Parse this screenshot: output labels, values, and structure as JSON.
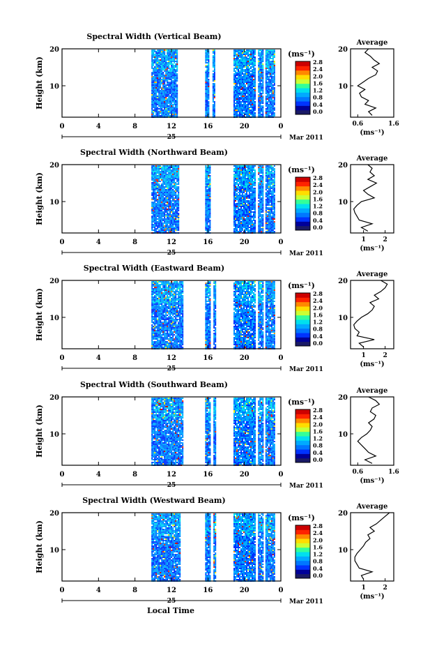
{
  "figure": {
    "xlabel": "Local Time",
    "date_day": "25",
    "date_label": "Mar 2011",
    "avg_title": "Average",
    "cbar_unit": "(ms⁻¹)",
    "avg_xlabel": "(ms⁻¹)",
    "ylabel": "Height (km)"
  },
  "colors": {
    "scale": [
      "#1a1a66",
      "#000099",
      "#0033ff",
      "#0077ff",
      "#00aaff",
      "#00e0ee",
      "#33ff99",
      "#ccff33",
      "#ffdd00",
      "#ff8800",
      "#ff2200",
      "#cc0000"
    ]
  },
  "chart_data": [
    {
      "type": "heatmap",
      "title": "Spectral Width (Vertical Beam)",
      "xlim": [
        0,
        24
      ],
      "ylim": [
        1.5,
        20
      ],
      "xticks": [
        "0",
        "4",
        "8",
        "12",
        "16",
        "20",
        "0"
      ],
      "yticks": [
        "10",
        "20"
      ],
      "cbar_ticks": [
        "0.0",
        "0.4",
        "0.8",
        "1.2",
        "1.6",
        "2.0",
        "2.4",
        "2.8"
      ],
      "cbar_range": [
        0,
        3.0
      ],
      "data_coverage_hours": [
        [
          9.8,
          12.7
        ],
        [
          15.7,
          16.1
        ],
        [
          16.5,
          16.7
        ],
        [
          18.8,
          21.1
        ],
        [
          21.5,
          22.0
        ],
        [
          22.3,
          23.3
        ]
      ],
      "average_profile": {
        "xlim": [
          0.4,
          1.6
        ],
        "xticks": [
          "0.6",
          "1.6"
        ],
        "yticks": [
          "10",
          "20"
        ],
        "height_km": [
          2,
          3,
          4,
          5,
          6,
          7,
          8,
          9,
          10,
          11,
          12,
          13,
          14,
          15,
          16,
          17,
          18,
          19,
          20
        ],
        "width_ms": [
          1.0,
          0.9,
          1.1,
          0.8,
          0.9,
          0.7,
          0.65,
          0.8,
          0.6,
          0.75,
          0.9,
          1.1,
          1.15,
          1.0,
          1.2,
          1.05,
          0.95,
          0.8,
          0.9
        ]
      }
    },
    {
      "type": "heatmap",
      "title": "Spectral Width (Northward Beam)",
      "xlim": [
        0,
        24
      ],
      "ylim": [
        1.5,
        20
      ],
      "xticks": [
        "0",
        "4",
        "8",
        "12",
        "16",
        "20",
        "0"
      ],
      "yticks": [
        "10",
        "20"
      ],
      "cbar_ticks": [
        "0.0",
        "0.4",
        "0.8",
        "1.2",
        "1.6",
        "2.0",
        "2.4",
        "2.8"
      ],
      "cbar_range": [
        0,
        3.0
      ],
      "data_coverage_hours": [
        [
          9.8,
          12.8
        ],
        [
          15.7,
          16.2
        ],
        [
          18.8,
          21.2
        ],
        [
          21.5,
          22.0
        ],
        [
          22.3,
          23.3
        ]
      ],
      "average_profile": {
        "xlim": [
          0.4,
          2.4
        ],
        "xticks": [
          "1",
          "2"
        ],
        "yticks": [
          "10",
          "20"
        ],
        "height_km": [
          2,
          3,
          4,
          5,
          6,
          7,
          8,
          9,
          10,
          11,
          12,
          13,
          14,
          15,
          16,
          17,
          18,
          19,
          20
        ],
        "width_ms": [
          1.2,
          0.9,
          1.4,
          0.8,
          0.7,
          0.6,
          0.55,
          0.7,
          0.9,
          1.5,
          1.2,
          1.0,
          1.3,
          1.6,
          1.2,
          1.5,
          1.3,
          1.4,
          1.2
        ]
      }
    },
    {
      "type": "heatmap",
      "title": "Spectral Width (Eastward Beam)",
      "xlim": [
        0,
        24
      ],
      "ylim": [
        1.5,
        20
      ],
      "xticks": [
        "0",
        "4",
        "8",
        "12",
        "16",
        "20",
        "0"
      ],
      "yticks": [
        "10",
        "20"
      ],
      "cbar_ticks": [
        "0.0",
        "0.4",
        "0.8",
        "1.2",
        "1.6",
        "2.0",
        "2.4",
        "2.8"
      ],
      "cbar_range": [
        0,
        3.0
      ],
      "data_coverage_hours": [
        [
          9.8,
          13.3
        ],
        [
          15.7,
          16.2
        ],
        [
          16.6,
          16.8
        ],
        [
          18.8,
          21.2
        ],
        [
          21.5,
          22.0
        ],
        [
          22.3,
          23.3
        ]
      ],
      "average_profile": {
        "xlim": [
          0.4,
          2.4
        ],
        "xticks": [
          "1",
          "2"
        ],
        "yticks": [
          "10",
          "20"
        ],
        "height_km": [
          2,
          3,
          4,
          5,
          6,
          7,
          8,
          9,
          10,
          11,
          12,
          13,
          14,
          15,
          16,
          17,
          18,
          19,
          20
        ],
        "width_ms": [
          1.0,
          0.8,
          1.5,
          0.7,
          0.8,
          0.6,
          0.55,
          0.7,
          0.9,
          1.2,
          1.4,
          1.5,
          1.3,
          1.7,
          1.5,
          1.8,
          2.0,
          2.1,
          1.8
        ]
      }
    },
    {
      "type": "heatmap",
      "title": "Spectral Width (Southward Beam)",
      "xlim": [
        0,
        24
      ],
      "ylim": [
        1.5,
        20
      ],
      "xticks": [
        "0",
        "4",
        "8",
        "12",
        "16",
        "20",
        "0"
      ],
      "yticks": [
        "10",
        "20"
      ],
      "cbar_ticks": [
        "0.0",
        "0.4",
        "0.8",
        "1.2",
        "1.6",
        "2.0",
        "2.4",
        "2.8"
      ],
      "cbar_range": [
        0,
        3.0
      ],
      "data_coverage_hours": [
        [
          9.8,
          13.3
        ],
        [
          15.7,
          16.3
        ],
        [
          16.6,
          16.9
        ],
        [
          18.8,
          21.2
        ],
        [
          21.5,
          22.0
        ],
        [
          22.3,
          23.3
        ]
      ],
      "average_profile": {
        "xlim": [
          0.4,
          1.6
        ],
        "xticks": [
          "0.6",
          "1.6"
        ],
        "yticks": [
          "10",
          "20"
        ],
        "height_km": [
          2,
          3,
          4,
          5,
          6,
          7,
          8,
          9,
          10,
          11,
          12,
          13,
          14,
          15,
          16,
          17,
          18,
          19,
          20
        ],
        "width_ms": [
          1.0,
          0.8,
          1.1,
          0.9,
          0.8,
          0.7,
          0.6,
          0.7,
          0.85,
          0.95,
          1.0,
          0.9,
          1.05,
          1.1,
          0.95,
          1.0,
          1.2,
          1.1,
          0.9
        ]
      }
    },
    {
      "type": "heatmap",
      "title": "Spectral Width (Westward Beam)",
      "xlim": [
        0,
        24
      ],
      "ylim": [
        1.5,
        20
      ],
      "xticks": [
        "0",
        "4",
        "8",
        "12",
        "16",
        "20",
        "0"
      ],
      "yticks": [
        "10",
        "20"
      ],
      "cbar_ticks": [
        "0.0",
        "0.4",
        "0.8",
        "1.2",
        "1.6",
        "2.0",
        "2.4",
        "2.8"
      ],
      "cbar_range": [
        0,
        3.0
      ],
      "data_coverage_hours": [
        [
          9.8,
          13.0
        ],
        [
          15.7,
          16.2
        ],
        [
          16.6,
          16.8
        ],
        [
          18.8,
          21.2
        ],
        [
          21.5,
          22.0
        ],
        [
          22.3,
          23.3
        ]
      ],
      "average_profile": {
        "xlim": [
          0.4,
          2.4
        ],
        "xticks": [
          "1",
          "2"
        ],
        "yticks": [
          "10",
          "20"
        ],
        "height_km": [
          2,
          3,
          4,
          5,
          6,
          7,
          8,
          9,
          10,
          11,
          12,
          13,
          14,
          15,
          16,
          17,
          18,
          19,
          20
        ],
        "width_ms": [
          1.0,
          0.9,
          1.4,
          0.8,
          0.7,
          0.6,
          0.6,
          0.7,
          0.85,
          1.0,
          1.1,
          1.3,
          1.2,
          1.5,
          1.3,
          1.6,
          1.8,
          2.0,
          2.2
        ]
      }
    }
  ]
}
